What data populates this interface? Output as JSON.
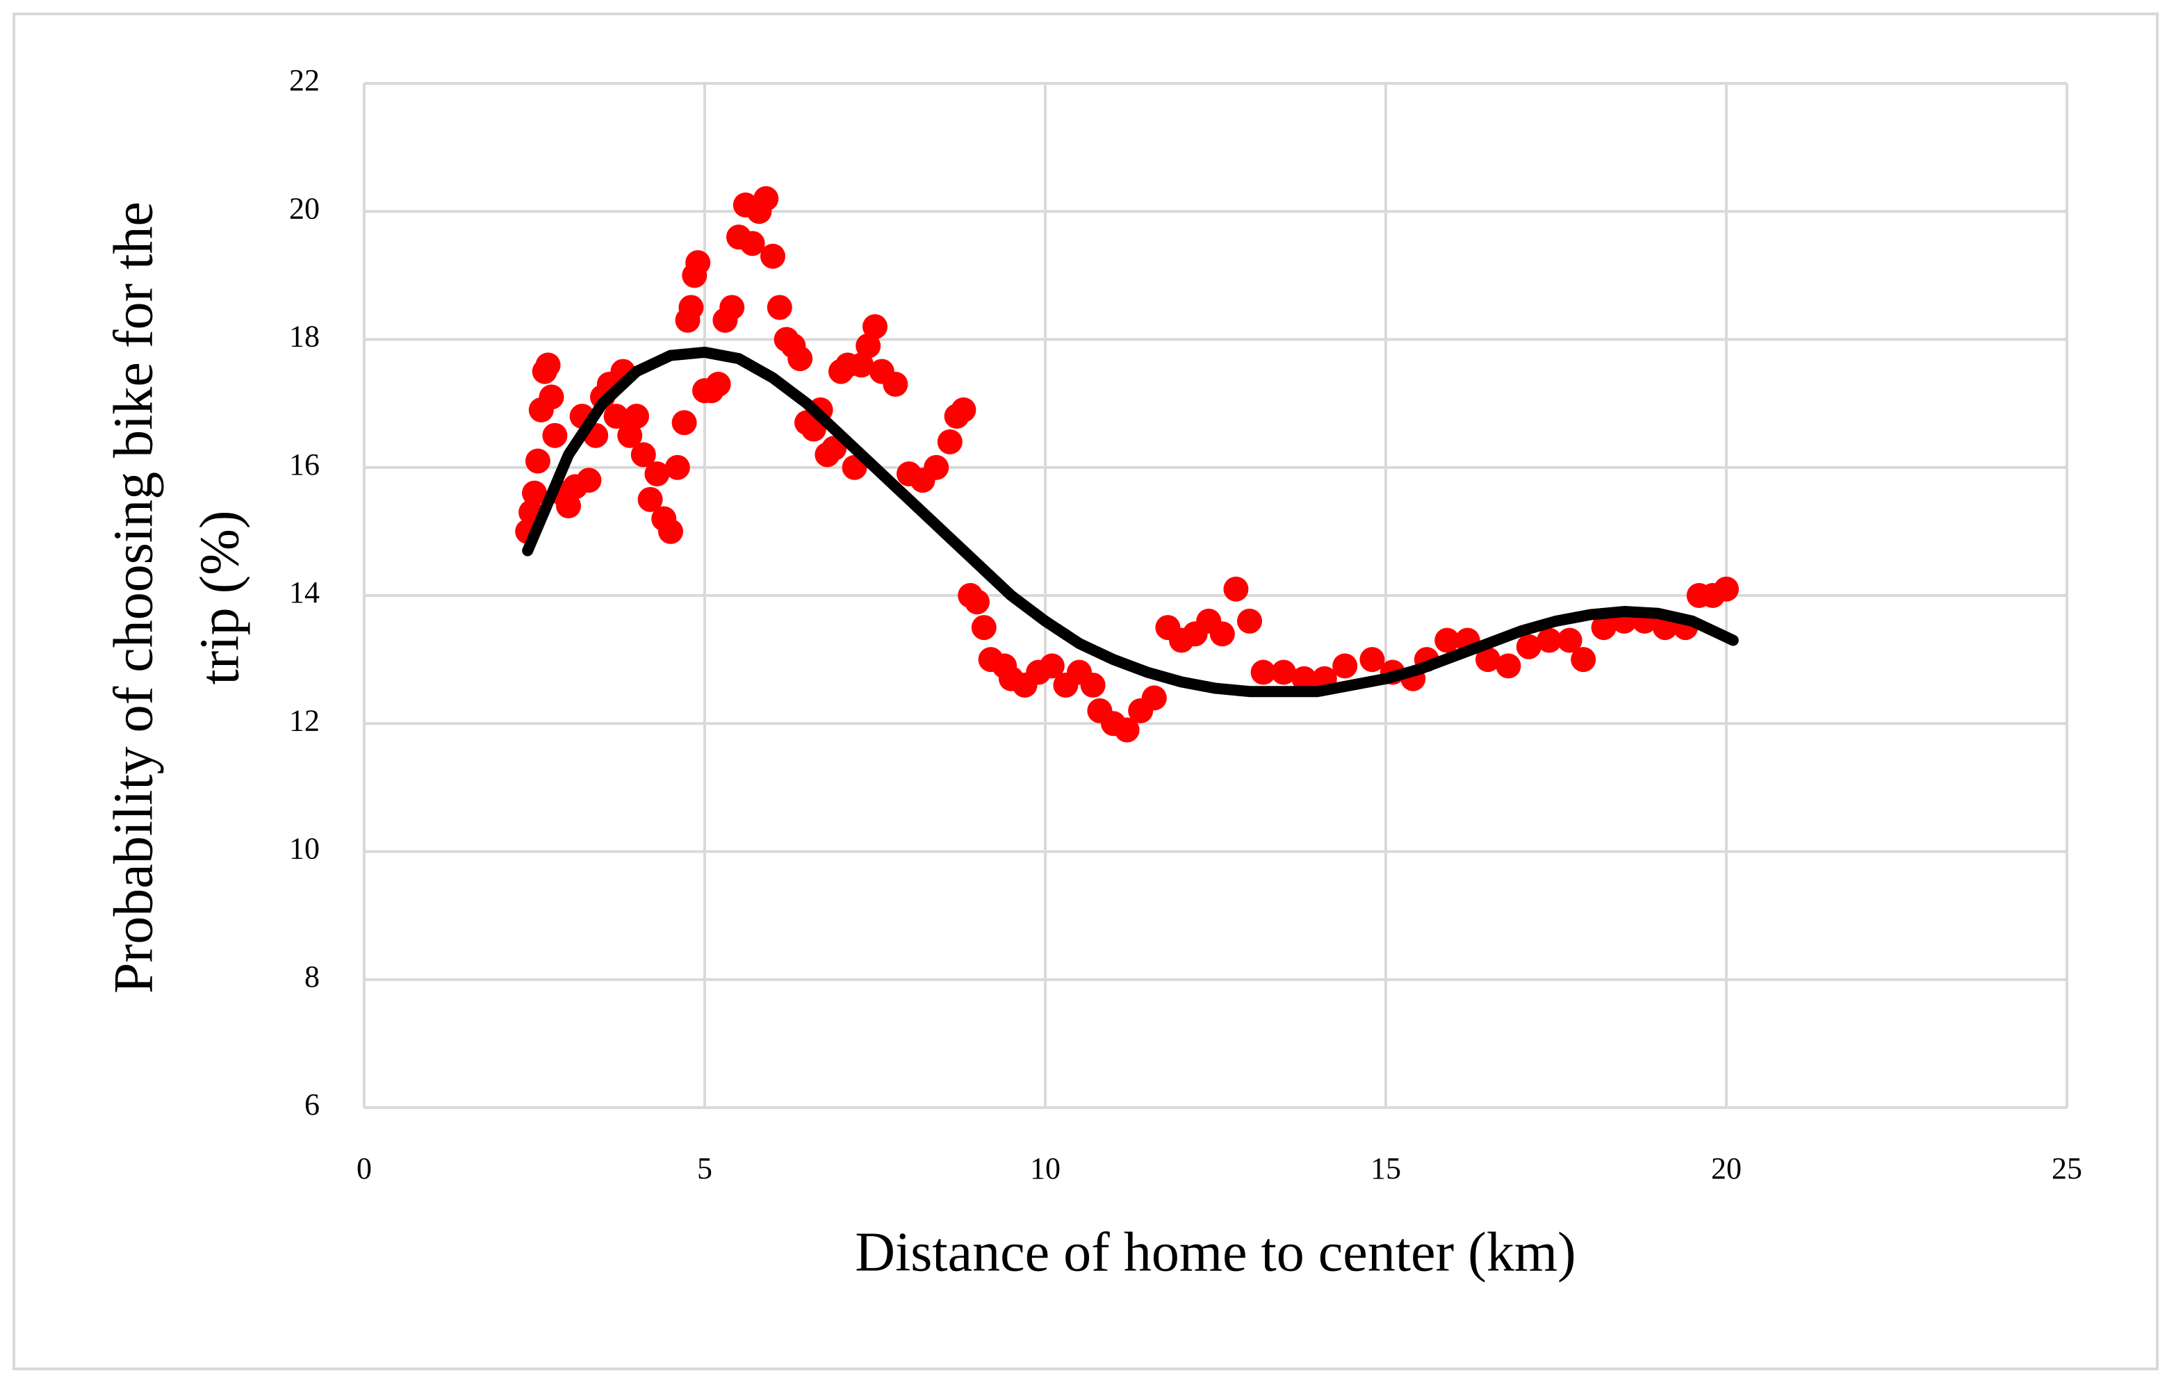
{
  "chart_data": {
    "type": "scatter",
    "x_label": "Distance of home to center (km)",
    "y_label": [
      "Probability of choosing bike for the",
      "trip (%)"
    ],
    "xlim": [
      0,
      25
    ],
    "xticks": [
      0,
      5,
      10,
      15,
      20,
      25
    ],
    "ylim": [
      6,
      22
    ],
    "yticks": [
      6,
      8,
      10,
      12,
      14,
      16,
      18,
      20,
      22
    ],
    "grid": true,
    "series": [
      {
        "type": "scatter",
        "color": "#ff0000",
        "x": [
          2.4,
          2.45,
          2.5,
          2.55,
          2.6,
          2.65,
          2.7,
          2.75,
          2.8,
          2.9,
          3.0,
          3.1,
          3.2,
          3.3,
          3.4,
          3.5,
          3.6,
          3.7,
          3.8,
          3.9,
          4.0,
          4.1,
          4.2,
          4.3,
          4.4,
          4.5,
          4.6,
          4.7,
          4.75,
          4.8,
          4.85,
          4.9,
          5.0,
          5.1,
          5.2,
          5.3,
          5.4,
          5.5,
          5.6,
          5.7,
          5.8,
          5.9,
          6.0,
          6.1,
          6.2,
          6.3,
          6.4,
          6.5,
          6.6,
          6.7,
          6.8,
          6.9,
          7.0,
          7.1,
          7.2,
          7.3,
          7.4,
          7.5,
          7.6,
          7.8,
          8.0,
          8.2,
          8.4,
          8.6,
          8.7,
          8.8,
          8.9,
          9.0,
          9.1,
          9.2,
          9.4,
          9.5,
          9.7,
          9.9,
          10.1,
          10.3,
          10.5,
          10.7,
          10.8,
          11.0,
          11.2,
          11.4,
          11.6,
          11.8,
          12.0,
          12.2,
          12.4,
          12.6,
          12.8,
          13.0,
          13.2,
          13.5,
          13.8,
          14.1,
          14.4,
          14.8,
          15.1,
          15.4,
          15.6,
          15.9,
          16.2,
          16.5,
          16.8,
          17.1,
          17.4,
          17.7,
          17.9,
          18.2,
          18.5,
          18.8,
          19.1,
          19.4,
          19.6,
          19.8,
          20.0
        ],
        "values": [
          15.0,
          15.3,
          15.6,
          16.1,
          16.9,
          17.5,
          17.6,
          17.1,
          16.5,
          15.6,
          15.4,
          15.7,
          16.8,
          15.8,
          16.5,
          17.1,
          17.3,
          16.8,
          17.5,
          16.5,
          16.8,
          16.2,
          15.5,
          15.9,
          15.2,
          15.0,
          16.0,
          16.7,
          18.3,
          18.5,
          19.0,
          19.2,
          17.2,
          17.2,
          17.3,
          18.3,
          18.5,
          19.6,
          20.1,
          19.5,
          20.0,
          20.2,
          19.3,
          18.5,
          18.0,
          17.9,
          17.7,
          16.7,
          16.6,
          16.9,
          16.2,
          16.3,
          17.5,
          17.6,
          16.0,
          17.6,
          17.9,
          18.2,
          17.5,
          17.3,
          15.9,
          15.8,
          16.0,
          16.4,
          16.8,
          16.9,
          14.0,
          13.9,
          13.5,
          13.0,
          12.9,
          12.7,
          12.6,
          12.8,
          12.9,
          12.6,
          12.8,
          12.6,
          12.2,
          12.0,
          11.9,
          12.2,
          12.4,
          13.5,
          13.3,
          13.4,
          13.6,
          13.4,
          14.1,
          13.6,
          12.8,
          12.8,
          12.7,
          12.7,
          12.9,
          13.0,
          12.8,
          12.7,
          13.0,
          13.3,
          13.3,
          13.0,
          12.9,
          13.2,
          13.3,
          13.3,
          13.0,
          13.5,
          13.6,
          13.6,
          13.5,
          13.5,
          14.0,
          14.0,
          14.1
        ]
      },
      {
        "type": "line",
        "color": "#000000",
        "x": [
          2.4,
          3,
          3.5,
          4,
          4.5,
          5,
          5.5,
          6,
          6.5,
          7,
          7.5,
          8,
          8.5,
          9,
          9.5,
          10,
          10.5,
          11,
          11.5,
          12,
          12.5,
          13,
          13.5,
          14,
          14.5,
          15,
          15.5,
          16,
          16.5,
          17,
          17.5,
          18,
          18.5,
          19,
          19.5,
          20,
          20.1
        ],
        "values": [
          14.7,
          16.2,
          17.0,
          17.5,
          17.75,
          17.8,
          17.7,
          17.4,
          17.0,
          16.5,
          16.0,
          15.5,
          15.0,
          14.5,
          14.0,
          13.6,
          13.25,
          13.0,
          12.8,
          12.65,
          12.55,
          12.5,
          12.5,
          12.5,
          12.6,
          12.7,
          12.85,
          13.05,
          13.25,
          13.45,
          13.6,
          13.7,
          13.75,
          13.72,
          13.6,
          13.35,
          13.3
        ]
      }
    ]
  }
}
